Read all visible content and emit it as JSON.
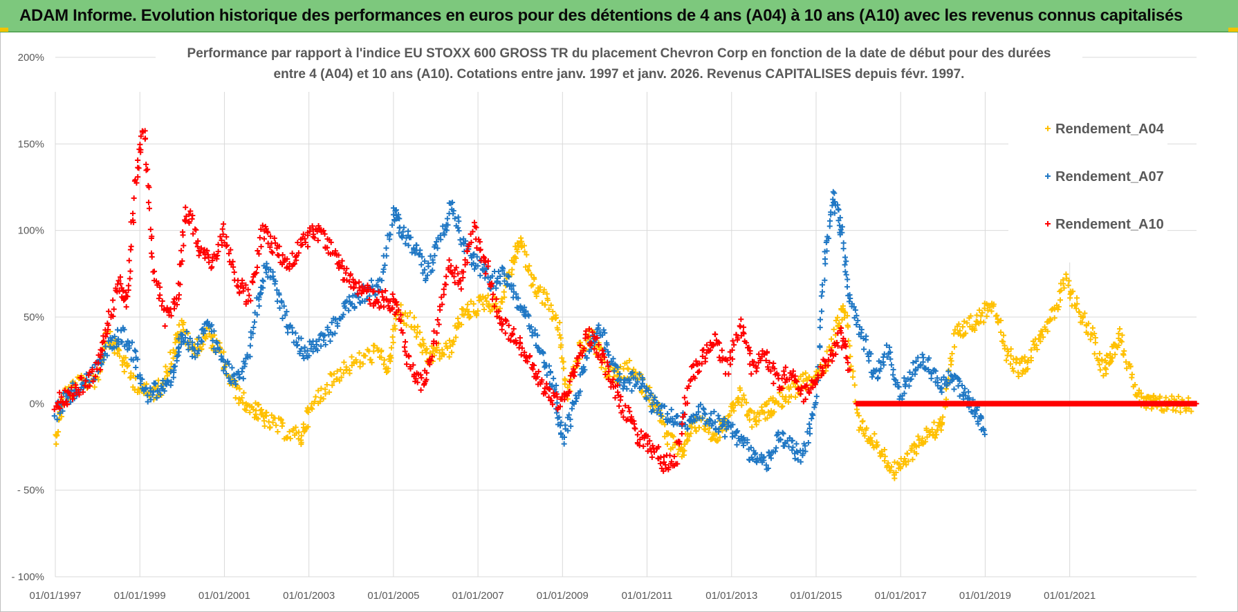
{
  "banner": {
    "title": "ADAM Informe. Evolution historique des performances en euros pour des détentions de 4 ans (A04) à 10 ans (A10) avec les revenus connus capitalisés"
  },
  "chart_data": {
    "type": "scatter",
    "title_line1": "Performance par rapport à l'indice EU STOXX 600 GROSS TR  du placement Chevron Corp en fonction de la date de début pour des durées",
    "title_line2": "entre 4 (A04) et 10 ans (A10).  Cotations entre janv. 1997 et janv. 2026. Revenus CAPITALISES depuis févr. 1997.",
    "xlabel": "",
    "ylabel": "",
    "xlim": [
      1997.0,
      2024.0
    ],
    "ylim": [
      -100,
      200
    ],
    "y_ticks": [
      {
        "value": 200,
        "label": "200%"
      },
      {
        "value": 150,
        "label": "150%"
      },
      {
        "value": 100,
        "label": "100%"
      },
      {
        "value": 50,
        "label": "50%"
      },
      {
        "value": 0,
        "label": "0%"
      },
      {
        "value": -50,
        "label": "- 50%"
      },
      {
        "value": -100,
        "label": "- 100%"
      }
    ],
    "x_ticks": [
      {
        "value": 1997,
        "label": "01/01/1997"
      },
      {
        "value": 1999,
        "label": "01/01/1999"
      },
      {
        "value": 2001,
        "label": "01/01/2001"
      },
      {
        "value": 2003,
        "label": "01/01/2003"
      },
      {
        "value": 2005,
        "label": "01/01/2005"
      },
      {
        "value": 2007,
        "label": "01/01/2007"
      },
      {
        "value": 2009,
        "label": "01/01/2009"
      },
      {
        "value": 2011,
        "label": "01/01/2011"
      },
      {
        "value": 2013,
        "label": "01/01/2013"
      },
      {
        "value": 2015,
        "label": "01/01/2015"
      },
      {
        "value": 2017,
        "label": "01/01/2017"
      },
      {
        "value": 2019,
        "label": "01/01/2019"
      },
      {
        "value": 2021,
        "label": "01/01/2021"
      }
    ],
    "grid": true,
    "legend_position": "top-right",
    "series": [
      {
        "name": "Rendement_A04",
        "color": "#ffc000",
        "x": [
          1997.0,
          1997.2,
          1997.5,
          1998.0,
          1998.2,
          1998.5,
          1998.8,
          1999.2,
          1999.5,
          1999.8,
          2000.0,
          2000.3,
          2000.6,
          2000.9,
          2001.2,
          2001.5,
          2001.8,
          2002.0,
          2002.4,
          2002.8,
          2003.0,
          2003.4,
          2003.8,
          2004.2,
          2004.6,
          2004.9,
          2005.1,
          2005.5,
          2005.8,
          2006.0,
          2006.3,
          2006.6,
          2006.9,
          2007.2,
          2007.5,
          2007.8,
          2008.0,
          2008.3,
          2008.6,
          2008.9,
          2009.1,
          2009.4,
          2009.7,
          2010.0,
          2010.3,
          2010.6,
          2010.9,
          2011.2,
          2011.5,
          2011.8,
          2012.0,
          2012.3,
          2012.6,
          2012.9,
          2013.2,
          2013.5,
          2013.8,
          2014.0,
          2014.3,
          2014.6,
          2014.9,
          2015.2,
          2015.5,
          2015.7,
          2016.0,
          2016.3,
          2016.6,
          2016.9,
          2017.2,
          2017.5,
          2017.8,
          2018.0,
          2018.3,
          2018.6,
          2018.9,
          2019.2,
          2019.5,
          2019.8,
          2020.0,
          2020.3,
          2020.6,
          2020.9,
          2021.2,
          2021.5,
          2021.8,
          2022.0,
          2022.2,
          2022.5,
          2022.8,
          2023.0,
          2023.3,
          2023.6,
          2023.9
        ],
        "values": [
          -20,
          5,
          10,
          15,
          40,
          30,
          15,
          5,
          10,
          30,
          45,
          30,
          40,
          30,
          10,
          0,
          -5,
          -10,
          -15,
          -20,
          -5,
          10,
          20,
          25,
          30,
          20,
          55,
          45,
          25,
          30,
          30,
          50,
          55,
          60,
          55,
          80,
          95,
          70,
          60,
          45,
          5,
          30,
          40,
          20,
          15,
          20,
          10,
          0,
          -20,
          -30,
          -15,
          -10,
          -20,
          -10,
          5,
          -10,
          -5,
          0,
          5,
          10,
          15,
          20,
          45,
          55,
          -10,
          -20,
          -30,
          -40,
          -30,
          -20,
          -15,
          -10,
          40,
          45,
          50,
          60,
          30,
          20,
          25,
          40,
          50,
          70,
          55,
          40,
          20,
          30,
          40,
          10,
          0,
          0,
          0,
          0,
          0
        ]
      },
      {
        "name": "Rendement_A07",
        "color": "#1f77c4",
        "x": [
          1997.0,
          1997.3,
          1997.6,
          1998.0,
          1998.3,
          1998.6,
          1998.9,
          1999.2,
          1999.5,
          1999.8,
          2000.0,
          2000.3,
          2000.6,
          2000.9,
          2001.2,
          2001.5,
          2001.8,
          2002.0,
          2002.3,
          2002.6,
          2002.9,
          2003.2,
          2003.5,
          2003.8,
          2004.1,
          2004.4,
          2004.7,
          2005.0,
          2005.2,
          2005.5,
          2005.8,
          2006.1,
          2006.4,
          2006.7,
          2007.0,
          2007.3,
          2007.6,
          2007.9,
          2008.2,
          2008.5,
          2008.8,
          2009.0,
          2009.3,
          2009.6,
          2009.9,
          2010.2,
          2010.5,
          2010.8,
          2011.1,
          2011.4,
          2011.7,
          2012.0,
          2012.3,
          2012.6,
          2012.9,
          2013.2,
          2013.5,
          2013.8,
          2014.1,
          2014.4,
          2014.7,
          2015.0,
          2015.2,
          2015.4,
          2015.6,
          2015.8,
          2016.1,
          2016.4,
          2016.7,
          2017.0,
          2017.3,
          2017.6,
          2017.9,
          2018.2,
          2018.5,
          2018.8,
          2019.0
        ],
        "values": [
          -5,
          5,
          10,
          20,
          35,
          40,
          25,
          5,
          10,
          15,
          40,
          30,
          50,
          25,
          15,
          20,
          60,
          80,
          60,
          40,
          30,
          35,
          40,
          55,
          60,
          65,
          70,
          110,
          100,
          90,
          75,
          95,
          115,
          90,
          80,
          70,
          75,
          60,
          50,
          30,
          10,
          -20,
          0,
          30,
          45,
          20,
          10,
          15,
          0,
          -5,
          -10,
          -10,
          -5,
          -10,
          -15,
          -20,
          -30,
          -35,
          -20,
          -25,
          -30,
          0,
          80,
          120,
          100,
          60,
          40,
          15,
          30,
          5,
          20,
          25,
          10,
          15,
          5,
          -5,
          -15
        ]
      },
      {
        "name": "Rendement_A10",
        "color": "#ff0000",
        "x": [
          1997.0,
          1997.3,
          1997.6,
          1998.0,
          1998.2,
          1998.5,
          1998.7,
          1998.9,
          1999.1,
          1999.3,
          1999.6,
          1999.9,
          2000.1,
          2000.4,
          2000.7,
          2001.0,
          2001.3,
          2001.6,
          2001.9,
          2002.2,
          2002.5,
          2002.8,
          2003.1,
          2003.4,
          2003.7,
          2004.0,
          2004.3,
          2004.6,
          2004.9,
          2005.1,
          2005.4,
          2005.7,
          2006.0,
          2006.3,
          2006.6,
          2006.9,
          2007.2,
          2007.5,
          2007.8,
          2008.1,
          2008.4,
          2008.7,
          2009.0,
          2009.3,
          2009.6,
          2009.9,
          2010.2,
          2010.5,
          2010.8,
          2011.1,
          2011.4,
          2011.7,
          2012.0,
          2012.3,
          2012.6,
          2012.9,
          2013.2,
          2013.5,
          2013.8,
          2014.1,
          2014.4,
          2014.7,
          2015.0,
          2015.3,
          2015.6,
          2015.8
        ],
        "values": [
          0,
          5,
          10,
          20,
          40,
          70,
          60,
          130,
          160,
          80,
          50,
          60,
          115,
          90,
          80,
          100,
          70,
          60,
          100,
          90,
          80,
          90,
          100,
          95,
          80,
          70,
          65,
          60,
          60,
          55,
          20,
          10,
          40,
          80,
          70,
          100,
          80,
          50,
          40,
          30,
          15,
          5,
          0,
          20,
          40,
          30,
          10,
          -5,
          -20,
          -25,
          -35,
          -30,
          15,
          25,
          40,
          20,
          45,
          20,
          30,
          10,
          20,
          5,
          15,
          25,
          40,
          20
        ]
      }
    ],
    "flat_segment": {
      "series": "Rendement_A10",
      "x_start": 2015.95,
      "x_end": 2024.0,
      "value": 0
    }
  }
}
